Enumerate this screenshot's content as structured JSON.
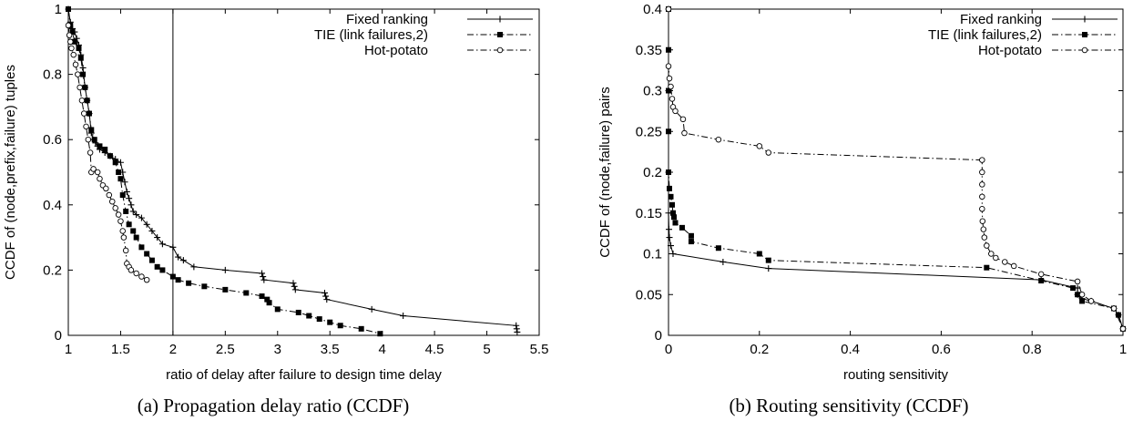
{
  "chart_data": [
    {
      "type": "line",
      "caption": "(a) Propagation delay ratio (CCDF)",
      "xlabel": "ratio of delay after failure to design time delay",
      "ylabel": "CCDF of (node,prefix,failure) tuples",
      "xlim": [
        1,
        5.5
      ],
      "ylim": [
        0,
        1
      ],
      "xticks": [
        "1",
        "1.5",
        "2",
        "2.5",
        "3",
        "3.5",
        "4",
        "4.5",
        "5",
        "5.5"
      ],
      "yticks": [
        "0",
        "0.2",
        "0.4",
        "0.6",
        "0.8",
        "1"
      ],
      "reference_line_x": 2,
      "legend_position": "top-right",
      "series": [
        {
          "name": "Fixed ranking",
          "line_style": "solid",
          "marker": "plus",
          "x": [
            1.0,
            1.02,
            1.04,
            1.06,
            1.08,
            1.1,
            1.12,
            1.14,
            1.16,
            1.18,
            1.2,
            1.22,
            1.24,
            1.26,
            1.28,
            1.3,
            1.35,
            1.4,
            1.45,
            1.5,
            1.52,
            1.54,
            1.56,
            1.58,
            1.6,
            1.62,
            1.65,
            1.7,
            1.75,
            1.8,
            1.85,
            1.9,
            2.0,
            2.05,
            2.1,
            2.2,
            2.5,
            2.85,
            2.86,
            2.87,
            3.15,
            3.16,
            3.17,
            3.45,
            3.46,
            3.47,
            3.9,
            4.2,
            5.28,
            5.285,
            5.29
          ],
          "y": [
            1.0,
            0.96,
            0.94,
            0.93,
            0.91,
            0.89,
            0.86,
            0.82,
            0.76,
            0.72,
            0.68,
            0.62,
            0.6,
            0.59,
            0.58,
            0.57,
            0.56,
            0.55,
            0.54,
            0.53,
            0.5,
            0.47,
            0.44,
            0.42,
            0.4,
            0.38,
            0.37,
            0.36,
            0.34,
            0.32,
            0.3,
            0.28,
            0.27,
            0.24,
            0.23,
            0.21,
            0.2,
            0.19,
            0.18,
            0.17,
            0.16,
            0.15,
            0.14,
            0.13,
            0.12,
            0.11,
            0.08,
            0.06,
            0.03,
            0.02,
            0.01
          ]
        },
        {
          "name": "TIE (link failures,2)",
          "line_style": "dash-dot",
          "marker": "filled-square",
          "x": [
            1.0,
            1.02,
            1.04,
            1.06,
            1.1,
            1.12,
            1.14,
            1.16,
            1.18,
            1.2,
            1.22,
            1.25,
            1.3,
            1.35,
            1.4,
            1.45,
            1.48,
            1.5,
            1.52,
            1.55,
            1.58,
            1.62,
            1.65,
            1.7,
            1.75,
            1.8,
            1.85,
            1.9,
            2.0,
            2.05,
            2.15,
            2.3,
            2.5,
            2.7,
            2.85,
            2.9,
            2.92,
            3.0,
            3.2,
            3.3,
            3.4,
            3.5,
            3.6,
            3.8,
            3.98
          ],
          "y": [
            1.0,
            0.95,
            0.93,
            0.9,
            0.88,
            0.85,
            0.8,
            0.76,
            0.72,
            0.68,
            0.63,
            0.6,
            0.58,
            0.57,
            0.55,
            0.53,
            0.5,
            0.48,
            0.43,
            0.38,
            0.34,
            0.32,
            0.3,
            0.27,
            0.25,
            0.23,
            0.21,
            0.2,
            0.18,
            0.17,
            0.16,
            0.15,
            0.14,
            0.13,
            0.12,
            0.11,
            0.1,
            0.08,
            0.07,
            0.06,
            0.05,
            0.04,
            0.03,
            0.02,
            0.005
          ]
        },
        {
          "name": "Hot-potato",
          "line_style": "dash-dot",
          "marker": "open-circle",
          "x": [
            1.0,
            1.01,
            1.02,
            1.03,
            1.05,
            1.07,
            1.09,
            1.11,
            1.13,
            1.15,
            1.17,
            1.19,
            1.21,
            1.22,
            1.24,
            1.28,
            1.3,
            1.33,
            1.36,
            1.39,
            1.42,
            1.45,
            1.48,
            1.5,
            1.52,
            1.53,
            1.55,
            1.56,
            1.58,
            1.6,
            1.65,
            1.7,
            1.75
          ],
          "y": [
            0.95,
            0.92,
            0.9,
            0.88,
            0.86,
            0.83,
            0.8,
            0.76,
            0.72,
            0.68,
            0.64,
            0.6,
            0.56,
            0.5,
            0.51,
            0.5,
            0.48,
            0.46,
            0.45,
            0.43,
            0.41,
            0.39,
            0.37,
            0.35,
            0.32,
            0.3,
            0.26,
            0.22,
            0.21,
            0.2,
            0.19,
            0.18,
            0.17
          ]
        }
      ]
    },
    {
      "type": "line",
      "caption": "(b) Routing sensitivity (CCDF)",
      "xlabel": "routing sensitivity",
      "ylabel": "CCDF of (node,failure) pairs",
      "xlim": [
        0,
        1
      ],
      "ylim": [
        0,
        0.4
      ],
      "xticks": [
        "0",
        "0.2",
        "0.4",
        "0.6",
        "0.8",
        "1"
      ],
      "yticks": [
        "0",
        "0.05",
        "0.1",
        "0.15",
        "0.2",
        "0.25",
        "0.3",
        "0.35",
        "0.4"
      ],
      "legend_position": "top-right",
      "series": [
        {
          "name": "Fixed ranking",
          "line_style": "solid",
          "marker": "plus",
          "x": [
            0.0,
            0.0,
            0.0,
            0.0,
            0.001,
            0.002,
            0.005,
            0.01,
            0.12,
            0.22,
            0.82,
            0.9,
            0.9,
            0.91,
            0.93,
            0.98,
            0.99,
            1.0
          ],
          "y": [
            0.4,
            0.3,
            0.2,
            0.15,
            0.13,
            0.12,
            0.11,
            0.1,
            0.09,
            0.082,
            0.068,
            0.058,
            0.05,
            0.045,
            0.042,
            0.033,
            0.025,
            0.008
          ]
        },
        {
          "name": "TIE (link failures,2)",
          "line_style": "dash-dot",
          "marker": "filled-square",
          "x": [
            0.0,
            0.0,
            0.0,
            0.0,
            0.0,
            0.002,
            0.005,
            0.008,
            0.01,
            0.012,
            0.015,
            0.03,
            0.05,
            0.05,
            0.11,
            0.2,
            0.22,
            0.7,
            0.82,
            0.89,
            0.9,
            0.91,
            0.98,
            0.99,
            1.0
          ],
          "y": [
            0.4,
            0.35,
            0.3,
            0.25,
            0.2,
            0.18,
            0.17,
            0.16,
            0.15,
            0.145,
            0.138,
            0.132,
            0.122,
            0.115,
            0.107,
            0.1,
            0.092,
            0.083,
            0.067,
            0.058,
            0.05,
            0.042,
            0.033,
            0.025,
            0.008
          ]
        },
        {
          "name": "Hot-potato",
          "line_style": "dash-dot",
          "marker": "open-circle",
          "x": [
            0.0,
            0.0,
            0.002,
            0.005,
            0.008,
            0.01,
            0.015,
            0.032,
            0.035,
            0.11,
            0.2,
            0.22,
            0.69,
            0.69,
            0.69,
            0.69,
            0.69,
            0.691,
            0.693,
            0.695,
            0.7,
            0.71,
            0.72,
            0.74,
            0.76,
            0.82,
            0.9,
            0.91,
            0.93,
            0.98,
            1.0
          ],
          "y": [
            0.4,
            0.33,
            0.315,
            0.305,
            0.29,
            0.28,
            0.275,
            0.265,
            0.248,
            0.24,
            0.232,
            0.224,
            0.215,
            0.2,
            0.185,
            0.17,
            0.155,
            0.14,
            0.13,
            0.12,
            0.11,
            0.1,
            0.095,
            0.09,
            0.085,
            0.075,
            0.066,
            0.05,
            0.042,
            0.033,
            0.008
          ]
        }
      ]
    }
  ]
}
